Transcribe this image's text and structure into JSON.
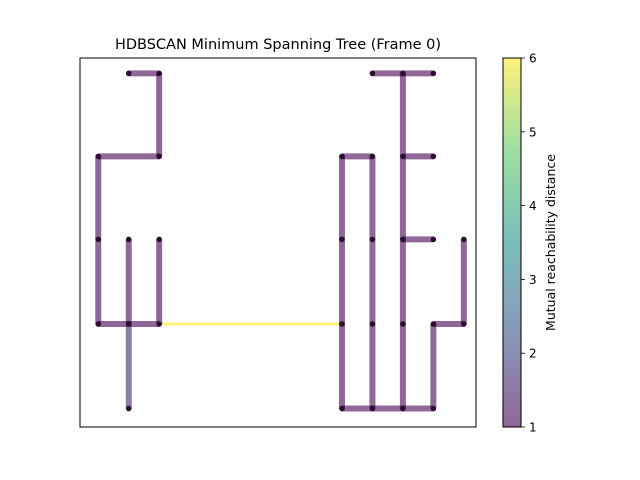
{
  "chart_data": {
    "type": "network",
    "title": "HDBSCAN Minimum Spanning Tree (Frame 0)",
    "xlim": [
      0,
      13
    ],
    "ylim": [
      0,
      12
    ],
    "axes_ticks_visible": false,
    "grid": false,
    "nodes": [
      [
        1.6,
        11.5
      ],
      [
        2.6,
        11.5
      ],
      [
        0.6,
        8.8
      ],
      [
        2.6,
        8.8
      ],
      [
        0.6,
        6.1
      ],
      [
        1.6,
        6.1
      ],
      [
        2.6,
        6.1
      ],
      [
        0.6,
        3.35
      ],
      [
        1.6,
        3.35
      ],
      [
        2.6,
        3.35
      ],
      [
        1.6,
        0.6
      ],
      [
        9.6,
        11.5
      ],
      [
        10.6,
        11.5
      ],
      [
        11.6,
        11.5
      ],
      [
        8.6,
        8.8
      ],
      [
        9.6,
        8.8
      ],
      [
        10.6,
        8.8
      ],
      [
        11.6,
        8.8
      ],
      [
        8.6,
        6.1
      ],
      [
        9.6,
        6.1
      ],
      [
        10.6,
        6.1
      ],
      [
        11.6,
        6.1
      ],
      [
        12.6,
        6.1
      ],
      [
        8.6,
        3.35
      ],
      [
        9.6,
        3.35
      ],
      [
        10.6,
        3.35
      ],
      [
        11.6,
        3.35
      ],
      [
        12.6,
        3.35
      ],
      [
        8.6,
        0.6
      ],
      [
        9.6,
        0.6
      ],
      [
        10.6,
        0.6
      ],
      [
        11.6,
        0.6
      ]
    ],
    "edges": [
      {
        "from": 0,
        "to": 1,
        "weight": 1
      },
      {
        "from": 1,
        "to": 3,
        "weight": 1
      },
      {
        "from": 2,
        "to": 3,
        "weight": 1
      },
      {
        "from": 2,
        "to": 4,
        "weight": 1
      },
      {
        "from": 4,
        "to": 7,
        "weight": 1
      },
      {
        "from": 7,
        "to": 8,
        "weight": 1
      },
      {
        "from": 8,
        "to": 9,
        "weight": 1
      },
      {
        "from": 5,
        "to": 8,
        "weight": 1
      },
      {
        "from": 6,
        "to": 9,
        "weight": 1
      },
      {
        "from": 8,
        "to": 10,
        "weight": 1.6
      },
      {
        "from": 9,
        "to": 23,
        "weight": 6
      },
      {
        "from": 11,
        "to": 12,
        "weight": 1
      },
      {
        "from": 12,
        "to": 13,
        "weight": 1
      },
      {
        "from": 12,
        "to": 16,
        "weight": 1
      },
      {
        "from": 16,
        "to": 17,
        "weight": 1
      },
      {
        "from": 16,
        "to": 20,
        "weight": 1
      },
      {
        "from": 20,
        "to": 21,
        "weight": 1
      },
      {
        "from": 20,
        "to": 25,
        "weight": 1
      },
      {
        "from": 25,
        "to": 30,
        "weight": 1
      },
      {
        "from": 14,
        "to": 15,
        "weight": 1
      },
      {
        "from": 14,
        "to": 18,
        "weight": 1
      },
      {
        "from": 18,
        "to": 23,
        "weight": 1
      },
      {
        "from": 23,
        "to": 28,
        "weight": 1
      },
      {
        "from": 15,
        "to": 19,
        "weight": 1
      },
      {
        "from": 19,
        "to": 24,
        "weight": 1
      },
      {
        "from": 24,
        "to": 29,
        "weight": 1
      },
      {
        "from": 28,
        "to": 29,
        "weight": 1
      },
      {
        "from": 29,
        "to": 30,
        "weight": 1
      },
      {
        "from": 30,
        "to": 31,
        "weight": 1
      },
      {
        "from": 31,
        "to": 26,
        "weight": 1
      },
      {
        "from": 26,
        "to": 27,
        "weight": 1
      },
      {
        "from": 27,
        "to": 22,
        "weight": 1
      }
    ],
    "colorbar": {
      "label": "Mutual reachability distance",
      "min": 1,
      "max": 6,
      "ticks": [
        "1",
        "2",
        "3",
        "4",
        "5",
        "6"
      ],
      "colormap": "viridis",
      "edge_alpha": 0.6
    },
    "node_color": "#2a0f2e"
  }
}
